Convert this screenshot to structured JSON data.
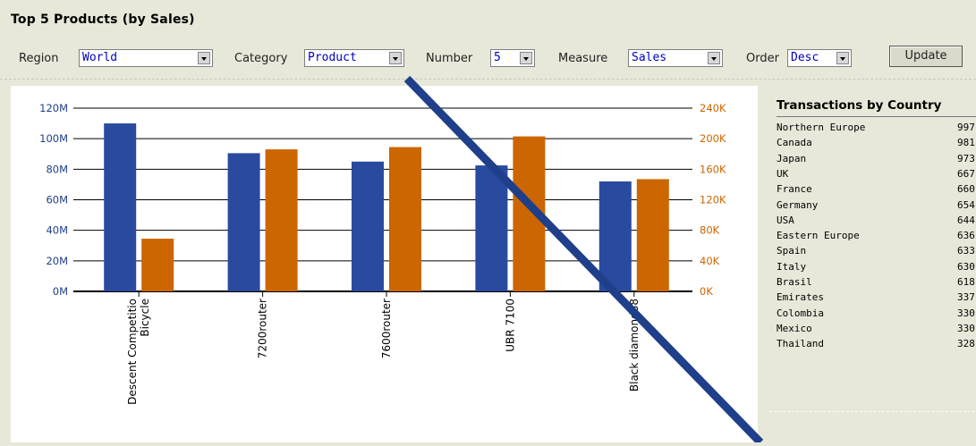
{
  "page": {
    "title": "Top 5 Products (by Sales)"
  },
  "filters": {
    "region": {
      "label": "Region",
      "value": "World"
    },
    "category": {
      "label": "Category",
      "value": "Product"
    },
    "number": {
      "label": "Number",
      "value": "5"
    },
    "measure": {
      "label": "Measure",
      "value": "Sales"
    },
    "order": {
      "label": "Order",
      "value": "Desc"
    },
    "update_label": "Update"
  },
  "colors": {
    "sales": "#2a4aa0",
    "secondary": "#cc6600",
    "left_axis_text": "#20408a",
    "right_axis_text": "#cc6600",
    "overlay_line": "#1f3f8a"
  },
  "chart_data": {
    "type": "bar",
    "categories": [
      [
        "Descent Competitio",
        "Bicycle"
      ],
      [
        "7200router"
      ],
      [
        "7600router"
      ],
      [
        "UBR 7100"
      ],
      [
        "Black diamond88"
      ]
    ],
    "series": [
      {
        "axis": "left",
        "values": [
          110,
          90.5,
          85,
          82.5,
          72
        ]
      },
      {
        "axis": "right",
        "values": [
          69,
          186,
          189,
          203,
          147
        ]
      }
    ],
    "left_axis": {
      "ticks": [
        "0M",
        "20M",
        "40M",
        "60M",
        "80M",
        "100M",
        "120M"
      ],
      "range": [
        0,
        120
      ]
    },
    "right_axis": {
      "ticks": [
        "0K",
        "40K",
        "80K",
        "120K",
        "160K",
        "200K",
        "240K"
      ],
      "range": [
        0,
        240
      ]
    },
    "grid": true
  },
  "side": {
    "title": "Transactions by Country",
    "rows": [
      {
        "country": "Northern Europe",
        "value": "997"
      },
      {
        "country": "Canada",
        "value": "981"
      },
      {
        "country": "Japan",
        "value": "973"
      },
      {
        "country": "UK",
        "value": "667"
      },
      {
        "country": "France",
        "value": "660"
      },
      {
        "country": "Germany",
        "value": "654"
      },
      {
        "country": "USA",
        "value": "644"
      },
      {
        "country": "Eastern Europe",
        "value": "636"
      },
      {
        "country": "Spain",
        "value": "633"
      },
      {
        "country": "Italy",
        "value": "630"
      },
      {
        "country": "Brasil",
        "value": "618"
      },
      {
        "country": "Emirates",
        "value": "337"
      },
      {
        "country": "Colombia",
        "value": "330"
      },
      {
        "country": "Mexico",
        "value": "330"
      },
      {
        "country": "Thailand",
        "value": "328"
      }
    ]
  }
}
